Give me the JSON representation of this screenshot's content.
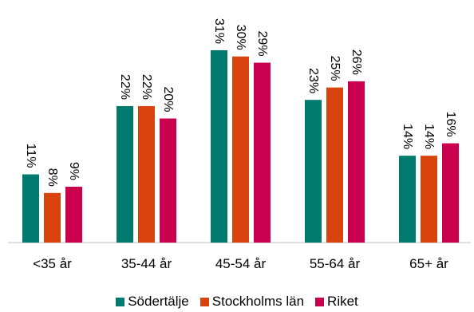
{
  "chart_data": {
    "type": "bar",
    "categories": [
      "<35 år",
      "35-44 år",
      "45-54 år",
      "55-64 år",
      "65+ år"
    ],
    "series": [
      {
        "name": "Södertälje",
        "color": "#007a6e",
        "values": [
          11,
          22,
          31,
          23,
          14
        ],
        "labels": [
          "11%",
          "22%",
          "31%",
          "23%",
          "14%"
        ]
      },
      {
        "name": "Stockholms län",
        "color": "#d9430d",
        "values": [
          8,
          22,
          30,
          25,
          14
        ],
        "labels": [
          "8%",
          "22%",
          "30%",
          "25%",
          "14%"
        ]
      },
      {
        "name": "Riket",
        "color": "#c8004e",
        "values": [
          9,
          20,
          29,
          26,
          16
        ],
        "labels": [
          "9%",
          "20%",
          "29%",
          "26%",
          "16%"
        ]
      }
    ],
    "ylim": [
      0,
      31
    ],
    "unit": "%",
    "grid": false,
    "legend_position": "bottom"
  }
}
